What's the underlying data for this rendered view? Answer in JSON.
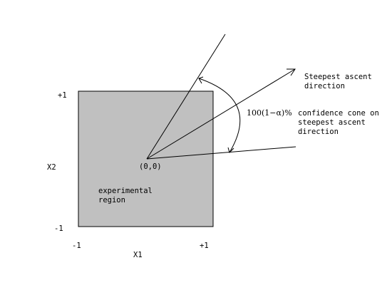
{
  "colors": {
    "region_fill": "#c0c0c0",
    "stroke": "#000000",
    "background": "#ffffff"
  },
  "axes": {
    "x_label": "X1",
    "y_label": "X2",
    "x_min_label": "-1",
    "x_max_label": "+1",
    "y_min_label": "-1",
    "y_max_label": "+1"
  },
  "region": {
    "label_line1": "experimental",
    "label_line2": "region"
  },
  "origin": {
    "label": "(0,0)"
  },
  "steepest_ascent": {
    "label_line1": "Steepest ascent",
    "label_line2": "direction"
  },
  "cone": {
    "angle_label": "100(1−α)%",
    "label_line1": "confidence cone on",
    "label_line2": "steepest ascent",
    "label_line3": "direction"
  }
}
